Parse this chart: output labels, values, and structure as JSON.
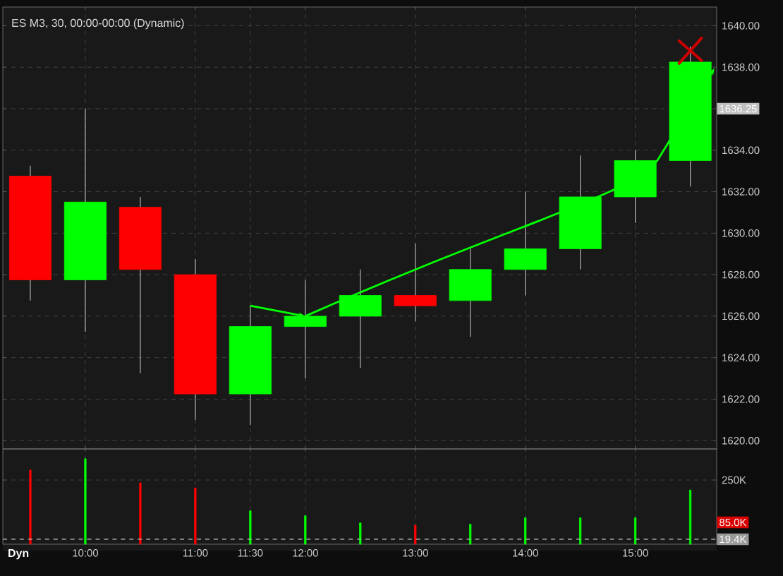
{
  "chart_data": [
    {
      "type": "candlestick",
      "title": "ES M3, 30, 00:00-00:00 (Dynamic)",
      "x": [
        9.5,
        10,
        10.5,
        11,
        11.5,
        12,
        12.5,
        13,
        13.5,
        14,
        14.5,
        15,
        15.5
      ],
      "ohlc": [
        [
          1632.75,
          1633.25,
          1626.75,
          1627.75
        ],
        [
          1627.75,
          1636,
          1625.25,
          1631.5
        ],
        [
          1631.25,
          1631.75,
          1623.25,
          1628.25
        ],
        [
          1628,
          1628.75,
          1621,
          1622.25
        ],
        [
          1622.25,
          1626.5,
          1620.75,
          1625.5
        ],
        [
          1625.5,
          1627.75,
          1623,
          1626
        ],
        [
          1626,
          1628.25,
          1623.5,
          1627
        ],
        [
          1627,
          1629.5,
          1625.75,
          1626.5
        ],
        [
          1626.75,
          1629.25,
          1625,
          1628.25
        ],
        [
          1628.25,
          1632,
          1627,
          1629.25
        ],
        [
          1629.25,
          1633.75,
          1628.25,
          1631.75
        ],
        [
          1631.75,
          1634,
          1630.5,
          1633.5
        ],
        [
          1633.5,
          1639,
          1632.25,
          1638.25
        ]
      ],
      "colors": [
        "#ff0000",
        "#00ff00",
        "#ff0000",
        "#ff0000",
        "#00ff00",
        "#00ff00",
        "#00ff00",
        "#ff0000",
        "#00ff00",
        "#00ff00",
        "#00ff00",
        "#00ff00",
        "#00ff00"
      ],
      "xlim": [
        9.25,
        15.74
      ],
      "ylim": [
        1619.6,
        1640.9
      ],
      "xticks": [
        10,
        11,
        11.5,
        12,
        13,
        14,
        15
      ],
      "yticks": [
        {
          "value": 1620,
          "label": "1620.00"
        },
        {
          "value": 1622,
          "label": "1622.00"
        },
        {
          "value": 1624,
          "label": "1624.00"
        },
        {
          "value": 1626,
          "label": "1626.00"
        },
        {
          "value": 1628,
          "label": "1628.00"
        },
        {
          "value": 1630,
          "label": "1630.00"
        },
        {
          "value": 1632,
          "label": "1632.00"
        },
        {
          "value": 1634,
          "label": "1634.00"
        },
        {
          "value": 1636,
          "label": null
        },
        {
          "value": 1638,
          "label": "1638.00"
        },
        {
          "value": 1640,
          "label": "1640.00"
        }
      ],
      "grid": true,
      "tick_labels": "y",
      "annotations": [
        "1636.25"
      ]
    },
    {
      "type": "bar",
      "x": [
        9.5,
        10,
        10.5,
        11,
        11.5,
        12,
        12.5,
        13,
        13.5,
        14,
        14.5,
        15,
        15.5
      ],
      "values": [
        289000,
        333000,
        239000,
        219000,
        130000,
        111000,
        83000,
        74000,
        78000,
        103000,
        103000,
        103000,
        211000
      ],
      "colors": [
        "#ff0000",
        "#00ff00",
        "#ff0000",
        "#ff0000",
        "#00ff00",
        "#00ff00",
        "#00ff00",
        "#ff0000",
        "#00ff00",
        "#00ff00",
        "#00ff00",
        "#00ff00",
        "#00ff00"
      ],
      "xlim": [
        9.25,
        15.74
      ],
      "ylim": [
        0,
        371000
      ],
      "xticks": [
        {
          "value": 10,
          "label": "10:00"
        },
        {
          "value": 11,
          "label": "11:00"
        },
        {
          "value": 11.5,
          "label": "11:30"
        },
        {
          "value": 12,
          "label": "12:00"
        },
        {
          "value": 13,
          "label": "13:00"
        },
        {
          "value": 14,
          "label": "14:00"
        },
        {
          "value": 15,
          "label": "15:00"
        }
      ],
      "yticks": [
        {
          "value": 250000,
          "label": "250K"
        }
      ],
      "grid": true,
      "ref_lines": [
        {
          "axis": "y",
          "value": 19400,
          "label": "19.4K",
          "color": "#cccccc",
          "line_style": "dashed"
        }
      ],
      "annotations": [
        {
          "text": "85.0K",
          "y": 85000
        },
        "Dyn"
      ]
    }
  ]
}
